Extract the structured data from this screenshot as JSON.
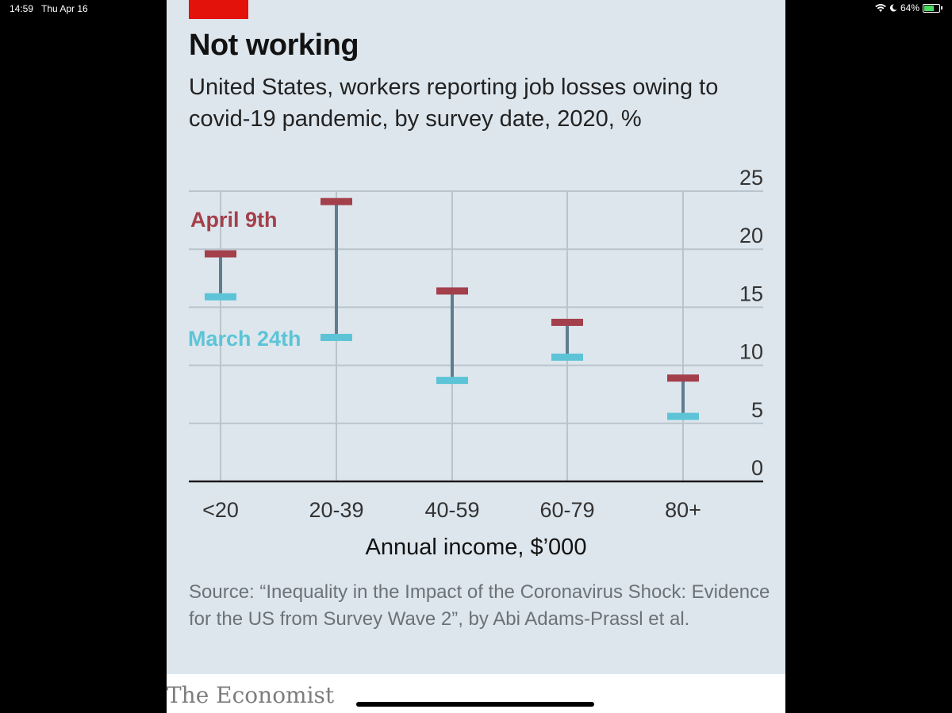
{
  "status_bar": {
    "time": "14:59",
    "date": "Thu Apr 16",
    "battery": "64%",
    "battery_level": 0.64
  },
  "brand": "The Economist",
  "colors": {
    "accent_red": "#e3120b",
    "april": "#a3404b",
    "march": "#5cc4d6",
    "stem": "#5f7d90",
    "gridline": "#b9c4cc",
    "background": "#dde6ed"
  },
  "chart_data": {
    "type": "dumbbell",
    "title": "Not working",
    "subtitle": "United States, workers reporting job losses owing to covid-19 pandemic, by survey date, 2020, %",
    "xlabel": "Annual income, $’000",
    "ylabel": "",
    "ylim": [
      0,
      25
    ],
    "yticks": [
      "0",
      "5",
      "10",
      "15",
      "20",
      "25"
    ],
    "y_axis_side": "right",
    "grid": true,
    "categories": [
      "<20",
      "20-39",
      "40-59",
      "60-79",
      "80+"
    ],
    "series": [
      {
        "name": "April 9th",
        "values": [
          19.6,
          24.1,
          16.4,
          13.7,
          8.9
        ]
      },
      {
        "name": "March 24th",
        "values": [
          15.9,
          12.4,
          8.7,
          10.7,
          5.6
        ]
      }
    ],
    "source": "Source: “Inequality in the Impact of the Coronavirus Shock: Evidence for the US from Survey Wave 2”, by Abi Adams-Prassl et al."
  }
}
